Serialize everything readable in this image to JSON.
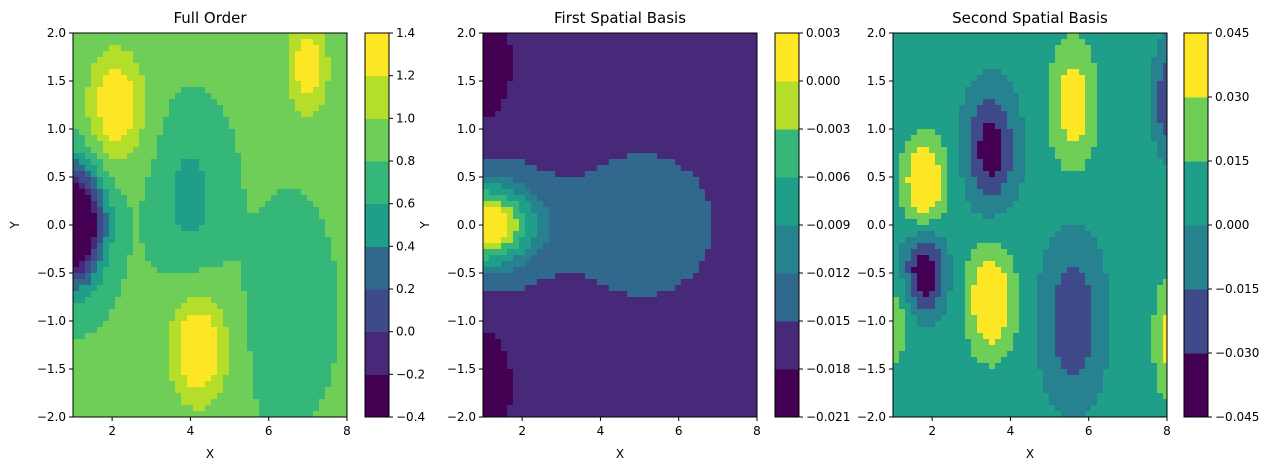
{
  "chart_data": [
    {
      "type": "heatmap",
      "title": "Full Order",
      "xlabel": "X",
      "ylabel": "Y",
      "xlim": [
        1,
        8
      ],
      "ylim": [
        -2,
        2
      ],
      "x_ticks": [
        "2",
        "4",
        "6",
        "8"
      ],
      "y_ticks": [
        "2.0",
        "1.5",
        "1.0",
        "0.5",
        "0.0",
        "−0.5",
        "−1.0",
        "−1.5",
        "−2.0"
      ],
      "colorbar_levels": [
        -0.4,
        -0.2,
        0.0,
        0.2,
        0.4,
        0.6,
        0.8,
        1.0,
        1.2,
        1.4
      ],
      "colorbar_labels": [
        "1.4",
        "1.2",
        "1.0",
        "0.8",
        "0.6",
        "0.4",
        "0.2",
        "0.0",
        "−0.2",
        "−0.4"
      ],
      "colormap": "viridis",
      "features": [
        {
          "x": 1.0,
          "y": 0.0,
          "sx": 0.7,
          "sy": 0.55,
          "amp": -1.9
        },
        {
          "x": 2.1,
          "y": 1.25,
          "sx": 0.7,
          "sy": 0.55,
          "amp": 0.6
        },
        {
          "x": 7.0,
          "y": 1.65,
          "sx": 0.5,
          "sy": 0.5,
          "amp": 0.55
        },
        {
          "x": 4.2,
          "y": -1.3,
          "sx": 0.7,
          "sy": 0.55,
          "amp": 0.65
        },
        {
          "x": 4.0,
          "y": 0.3,
          "sx": 0.8,
          "sy": 0.7,
          "amp": -0.3
        },
        {
          "x": 6.5,
          "y": -0.9,
          "sx": 0.9,
          "sy": 0.9,
          "amp": -0.15
        }
      ],
      "base_value": 0.82
    },
    {
      "type": "heatmap",
      "title": "First Spatial Basis",
      "xlabel": "X",
      "ylabel": "Y",
      "xlim": [
        1,
        8
      ],
      "ylim": [
        -2,
        2
      ],
      "x_ticks": [
        "2",
        "4",
        "6",
        "8"
      ],
      "y_ticks": [
        "2.0",
        "1.5",
        "1.0",
        "0.5",
        "0.0",
        "−0.5",
        "−1.0",
        "−1.5",
        "−2.0"
      ],
      "colorbar_levels": [
        -0.021,
        -0.018,
        -0.015,
        -0.012,
        -0.009,
        -0.006,
        -0.003,
        0.0,
        0.003
      ],
      "colorbar_labels": [
        "0.003",
        "0.000",
        "−0.003",
        "−0.006",
        "−0.009",
        "−0.012",
        "−0.015",
        "−0.018",
        "−0.021"
      ],
      "colormap": "viridis",
      "features": [
        {
          "x": 1.0,
          "y": 0.0,
          "sx": 1.3,
          "sy": 0.42,
          "amp": 0.02
        },
        {
          "x": 1.0,
          "y": 1.7,
          "sx": 0.7,
          "sy": 0.55,
          "amp": -0.006
        },
        {
          "x": 1.0,
          "y": -1.7,
          "sx": 0.7,
          "sy": 0.55,
          "amp": -0.006
        },
        {
          "x": 5.0,
          "y": 0.0,
          "sx": 1.8,
          "sy": 0.7,
          "amp": 0.003
        }
      ],
      "base_value": -0.016
    },
    {
      "type": "heatmap",
      "title": "Second Spatial Basis",
      "xlabel": "X",
      "ylabel": "",
      "xlim": [
        1,
        8
      ],
      "ylim": [
        -2,
        2
      ],
      "x_ticks": [
        "2",
        "4",
        "6",
        "8"
      ],
      "y_ticks": [
        "2.0",
        "1.5",
        "1.0",
        "0.5",
        "0.0",
        "−0.5",
        "−1.0",
        "−1.5",
        "−2.0"
      ],
      "colorbar_levels": [
        -0.045,
        -0.03,
        -0.015,
        0.0,
        0.015,
        0.03,
        0.045
      ],
      "colorbar_labels": [
        "0.045",
        "0.030",
        "0.015",
        "0.000",
        "−0.015",
        "−0.030",
        "−0.045"
      ],
      "colormap": "viridis",
      "features": [
        {
          "x": 1.8,
          "y": 0.45,
          "sx": 0.55,
          "sy": 0.45,
          "amp": 0.045
        },
        {
          "x": 1.8,
          "y": -0.5,
          "sx": 0.5,
          "sy": 0.4,
          "amp": -0.05
        },
        {
          "x": 3.5,
          "y": 0.8,
          "sx": 0.6,
          "sy": 0.55,
          "amp": -0.045
        },
        {
          "x": 3.5,
          "y": -0.8,
          "sx": 0.6,
          "sy": 0.55,
          "amp": 0.045
        },
        {
          "x": 5.6,
          "y": 1.25,
          "sx": 0.6,
          "sy": 0.65,
          "amp": 0.035
        },
        {
          "x": 5.6,
          "y": -1.0,
          "sx": 0.7,
          "sy": 0.75,
          "amp": -0.035
        },
        {
          "x": 8.0,
          "y": 1.3,
          "sx": 0.3,
          "sy": 0.5,
          "amp": -0.035
        },
        {
          "x": 8.0,
          "y": -1.2,
          "sx": 0.35,
          "sy": 0.6,
          "amp": 0.03
        },
        {
          "x": 1.0,
          "y": -1.0,
          "sx": 0.5,
          "sy": 0.5,
          "amp": 0.02
        }
      ],
      "base_value": 0.005
    }
  ],
  "colormap_colors": [
    "#440154",
    "#482878",
    "#3e4a89",
    "#31688e",
    "#26828e",
    "#1f9e89",
    "#35b779",
    "#6ece58",
    "#b5de2b",
    "#fde725"
  ]
}
